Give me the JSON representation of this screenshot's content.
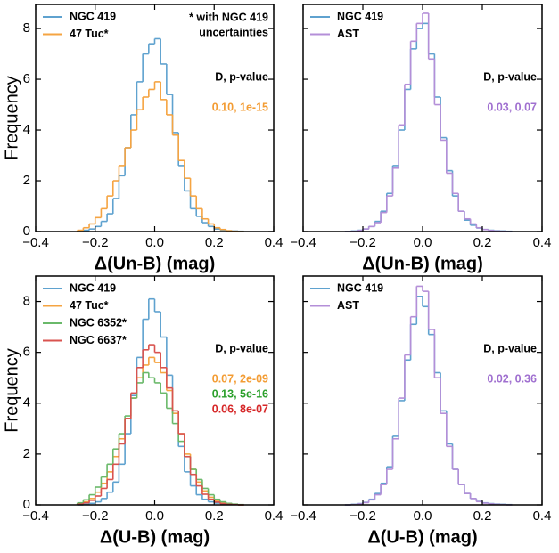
{
  "chart_data": [
    {
      "type": "histogram",
      "xlabel": "Δ(Un-B) (mag)",
      "ylabel": "Frequency",
      "show_ytick_labels": true,
      "xlim": [
        -0.4,
        0.4
      ],
      "ylim": [
        0,
        8.95
      ],
      "xticks": [
        {
          "value": -0.4,
          "label": "−0.4"
        },
        {
          "value": -0.2,
          "label": "−0.2"
        },
        {
          "value": 0,
          "label": "0.0"
        },
        0.2,
        0.4
      ],
      "yticks": [
        0,
        2,
        4,
        6,
        8
      ],
      "legend": "upper left",
      "bins": [
        -0.26,
        -0.24,
        -0.22,
        -0.2,
        -0.18,
        -0.16,
        -0.14,
        -0.12,
        -0.1,
        -0.08,
        -0.06,
        -0.04,
        -0.02,
        0,
        0.02,
        0.04,
        0.06,
        0.08,
        0.1,
        0.12,
        0.14,
        0.16,
        0.18,
        0.2,
        0.22,
        0.24,
        0.26,
        0.28,
        0.3
      ],
      "series": [
        {
          "name": "NGC 419",
          "color": "#5fa2cf",
          "values": [
            0,
            0.05,
            0.1,
            0.2,
            0.4,
            0.7,
            1.3,
            2.2,
            3.3,
            4.6,
            5.9,
            7.0,
            7.4,
            7.6,
            6.6,
            5.4,
            3.9,
            2.6,
            1.6,
            0.9,
            0.6,
            0.35,
            0.2,
            0.1,
            0.06,
            0.03,
            0.02,
            0.01
          ]
        },
        {
          "name": "47 Tuc*",
          "color": "#f5a442",
          "values": [
            0.05,
            0.15,
            0.3,
            0.55,
            0.9,
            1.4,
            2.0,
            2.6,
            3.3,
            4.0,
            4.8,
            5.3,
            5.6,
            5.9,
            5.2,
            4.6,
            3.8,
            2.8,
            2.1,
            1.4,
            0.9,
            0.5,
            0.3,
            0.15,
            0.08,
            0.03,
            0.01,
            0
          ]
        }
      ],
      "note": [
        "* with NGC 419",
        "uncertainties"
      ],
      "stat_header": "D, p-value",
      "stats": [
        {
          "text": "0.10, 1e-15",
          "color": "#f39c33"
        }
      ]
    },
    {
      "type": "histogram",
      "xlabel": "Δ(Un-B) (mag)",
      "show_ytick_labels": false,
      "xlim": [
        -0.4,
        0.4
      ],
      "ylim": [
        0,
        8.95
      ],
      "xticks": [
        {
          "value": -0.4,
          "label": "−0.4"
        },
        {
          "value": -0.2,
          "label": "−0.2"
        },
        {
          "value": 0,
          "label": "0.0"
        },
        0.2,
        0.4
      ],
      "yticks": [
        0,
        2,
        4,
        6,
        8
      ],
      "legend": "upper left",
      "bins": [
        -0.26,
        -0.24,
        -0.22,
        -0.2,
        -0.18,
        -0.16,
        -0.14,
        -0.12,
        -0.1,
        -0.08,
        -0.06,
        -0.04,
        -0.02,
        0,
        0.02,
        0.04,
        0.06,
        0.08,
        0.1,
        0.12,
        0.14,
        0.16,
        0.18,
        0.2,
        0.22,
        0.24,
        0.26,
        0.28,
        0.3
      ],
      "series": [
        {
          "name": "NGC 419",
          "color": "#5fa2cf",
          "values": [
            0,
            0.02,
            0.05,
            0.1,
            0.2,
            0.4,
            0.8,
            1.5,
            2.6,
            4.0,
            5.6,
            7.2,
            8.0,
            8.2,
            7.0,
            5.3,
            3.7,
            2.4,
            1.4,
            0.8,
            0.45,
            0.25,
            0.14,
            0.08,
            0.05,
            0.03,
            0.02,
            0.01
          ]
        },
        {
          "name": "AST",
          "color": "#b48fd8",
          "values": [
            0,
            0.01,
            0.04,
            0.1,
            0.2,
            0.35,
            0.75,
            1.4,
            2.5,
            4.2,
            5.8,
            7.5,
            8.2,
            8.6,
            6.8,
            5.0,
            3.6,
            2.3,
            1.5,
            0.8,
            0.5,
            0.3,
            0.15,
            0.08,
            0.04,
            0.02,
            0.01,
            0
          ]
        }
      ],
      "stat_header": "D, p-value",
      "stats": [
        {
          "text": "0.03, 0.07",
          "color": "#a070d0"
        }
      ]
    },
    {
      "type": "histogram",
      "xlabel": "Δ(U-B) (mag)",
      "ylabel": "Frequency",
      "show_ytick_labels": true,
      "xlim": [
        -0.4,
        0.4
      ],
      "ylim": [
        0,
        9
      ],
      "xticks": [
        {
          "value": -0.4,
          "label": "−0.4"
        },
        {
          "value": -0.2,
          "label": "−0.2"
        },
        {
          "value": 0,
          "label": "0.0"
        },
        0.2,
        0.4
      ],
      "yticks": [
        0,
        2,
        4,
        6,
        8
      ],
      "legend": "upper left",
      "bins": [
        -0.26,
        -0.24,
        -0.22,
        -0.2,
        -0.18,
        -0.16,
        -0.14,
        -0.12,
        -0.1,
        -0.08,
        -0.06,
        -0.04,
        -0.02,
        0,
        0.02,
        0.04,
        0.06,
        0.08,
        0.1,
        0.12,
        0.14,
        0.16,
        0.18,
        0.2,
        0.22,
        0.24,
        0.26,
        0.28,
        0.3
      ],
      "series": [
        {
          "name": "NGC 419",
          "color": "#5fa2cf",
          "values": [
            0,
            0.02,
            0.06,
            0.12,
            0.25,
            0.5,
            0.9,
            1.6,
            2.8,
            4.3,
            5.8,
            7.3,
            8.1,
            7.6,
            6.6,
            5.1,
            3.6,
            2.3,
            1.3,
            0.75,
            0.4,
            0.22,
            0.12,
            0.07,
            0.04,
            0.02,
            0.01,
            0
          ]
        },
        {
          "name": "47 Tuc*",
          "color": "#f5a442",
          "values": [
            0.05,
            0.12,
            0.25,
            0.5,
            0.85,
            1.3,
            1.9,
            2.6,
            3.4,
            4.2,
            5.0,
            5.5,
            5.8,
            5.6,
            5.2,
            4.5,
            3.6,
            2.8,
            2.0,
            1.4,
            0.9,
            0.55,
            0.3,
            0.15,
            0.07,
            0.03,
            0.01,
            0
          ]
        },
        {
          "name": "NGC 6352*",
          "color": "#6ab96a",
          "values": [
            0.08,
            0.2,
            0.4,
            0.7,
            1.1,
            1.6,
            2.2,
            2.8,
            3.5,
            4.2,
            4.8,
            5.2,
            5.0,
            4.8,
            4.4,
            3.8,
            3.2,
            2.5,
            1.9,
            1.4,
            1.0,
            0.65,
            0.4,
            0.22,
            0.12,
            0.06,
            0.03,
            0.01
          ]
        },
        {
          "name": "NGC 6637*",
          "color": "#d9534f",
          "values": [
            0.03,
            0.08,
            0.18,
            0.35,
            0.65,
            1.0,
            1.6,
            2.4,
            3.4,
            4.4,
            5.4,
            6.1,
            6.3,
            6.0,
            5.4,
            4.6,
            3.7,
            2.8,
            1.9,
            1.2,
            0.75,
            0.42,
            0.22,
            0.11,
            0.05,
            0.02,
            0.01,
            0
          ]
        }
      ],
      "stat_header": "D, p-value",
      "stats": [
        {
          "text": "0.07, 2e-09",
          "color": "#f39c33"
        },
        {
          "text": "0.13, 5e-16",
          "color": "#2ca02c"
        },
        {
          "text": "0.06, 8e-07",
          "color": "#d62728"
        }
      ]
    },
    {
      "type": "histogram",
      "xlabel": "Δ(U-B) (mag)",
      "show_ytick_labels": false,
      "xlim": [
        -0.4,
        0.4
      ],
      "ylim": [
        0,
        9
      ],
      "xticks": [
        {
          "value": -0.4,
          "label": "−0.4"
        },
        {
          "value": -0.2,
          "label": "−0.2"
        },
        {
          "value": 0,
          "label": "0.0"
        },
        0.2,
        0.4
      ],
      "yticks": [
        0,
        2,
        4,
        6,
        8
      ],
      "legend": "upper left",
      "bins": [
        -0.26,
        -0.24,
        -0.22,
        -0.2,
        -0.18,
        -0.16,
        -0.14,
        -0.12,
        -0.1,
        -0.08,
        -0.06,
        -0.04,
        -0.02,
        0,
        0.02,
        0.04,
        0.06,
        0.08,
        0.1,
        0.12,
        0.14,
        0.16,
        0.18,
        0.2,
        0.22,
        0.24,
        0.26,
        0.28,
        0.3
      ],
      "series": [
        {
          "name": "NGC 419",
          "color": "#5fa2cf",
          "values": [
            0,
            0.02,
            0.05,
            0.1,
            0.22,
            0.45,
            0.85,
            1.5,
            2.7,
            4.1,
            5.7,
            7.1,
            8.2,
            7.8,
            6.7,
            5.2,
            3.7,
            2.4,
            1.4,
            0.8,
            0.45,
            0.25,
            0.14,
            0.08,
            0.05,
            0.03,
            0.02,
            0.01
          ]
        },
        {
          "name": "AST",
          "color": "#b48fd8",
          "values": [
            0,
            0.01,
            0.04,
            0.09,
            0.2,
            0.4,
            0.8,
            1.4,
            2.6,
            4.2,
            5.9,
            7.4,
            8.6,
            8.4,
            6.9,
            5.0,
            3.6,
            2.3,
            1.4,
            0.8,
            0.45,
            0.25,
            0.13,
            0.07,
            0.04,
            0.02,
            0.01,
            0
          ]
        }
      ],
      "stat_header": "D, p-value",
      "stats": [
        {
          "text": "0.02, 0.36",
          "color": "#a070d0"
        }
      ]
    }
  ]
}
